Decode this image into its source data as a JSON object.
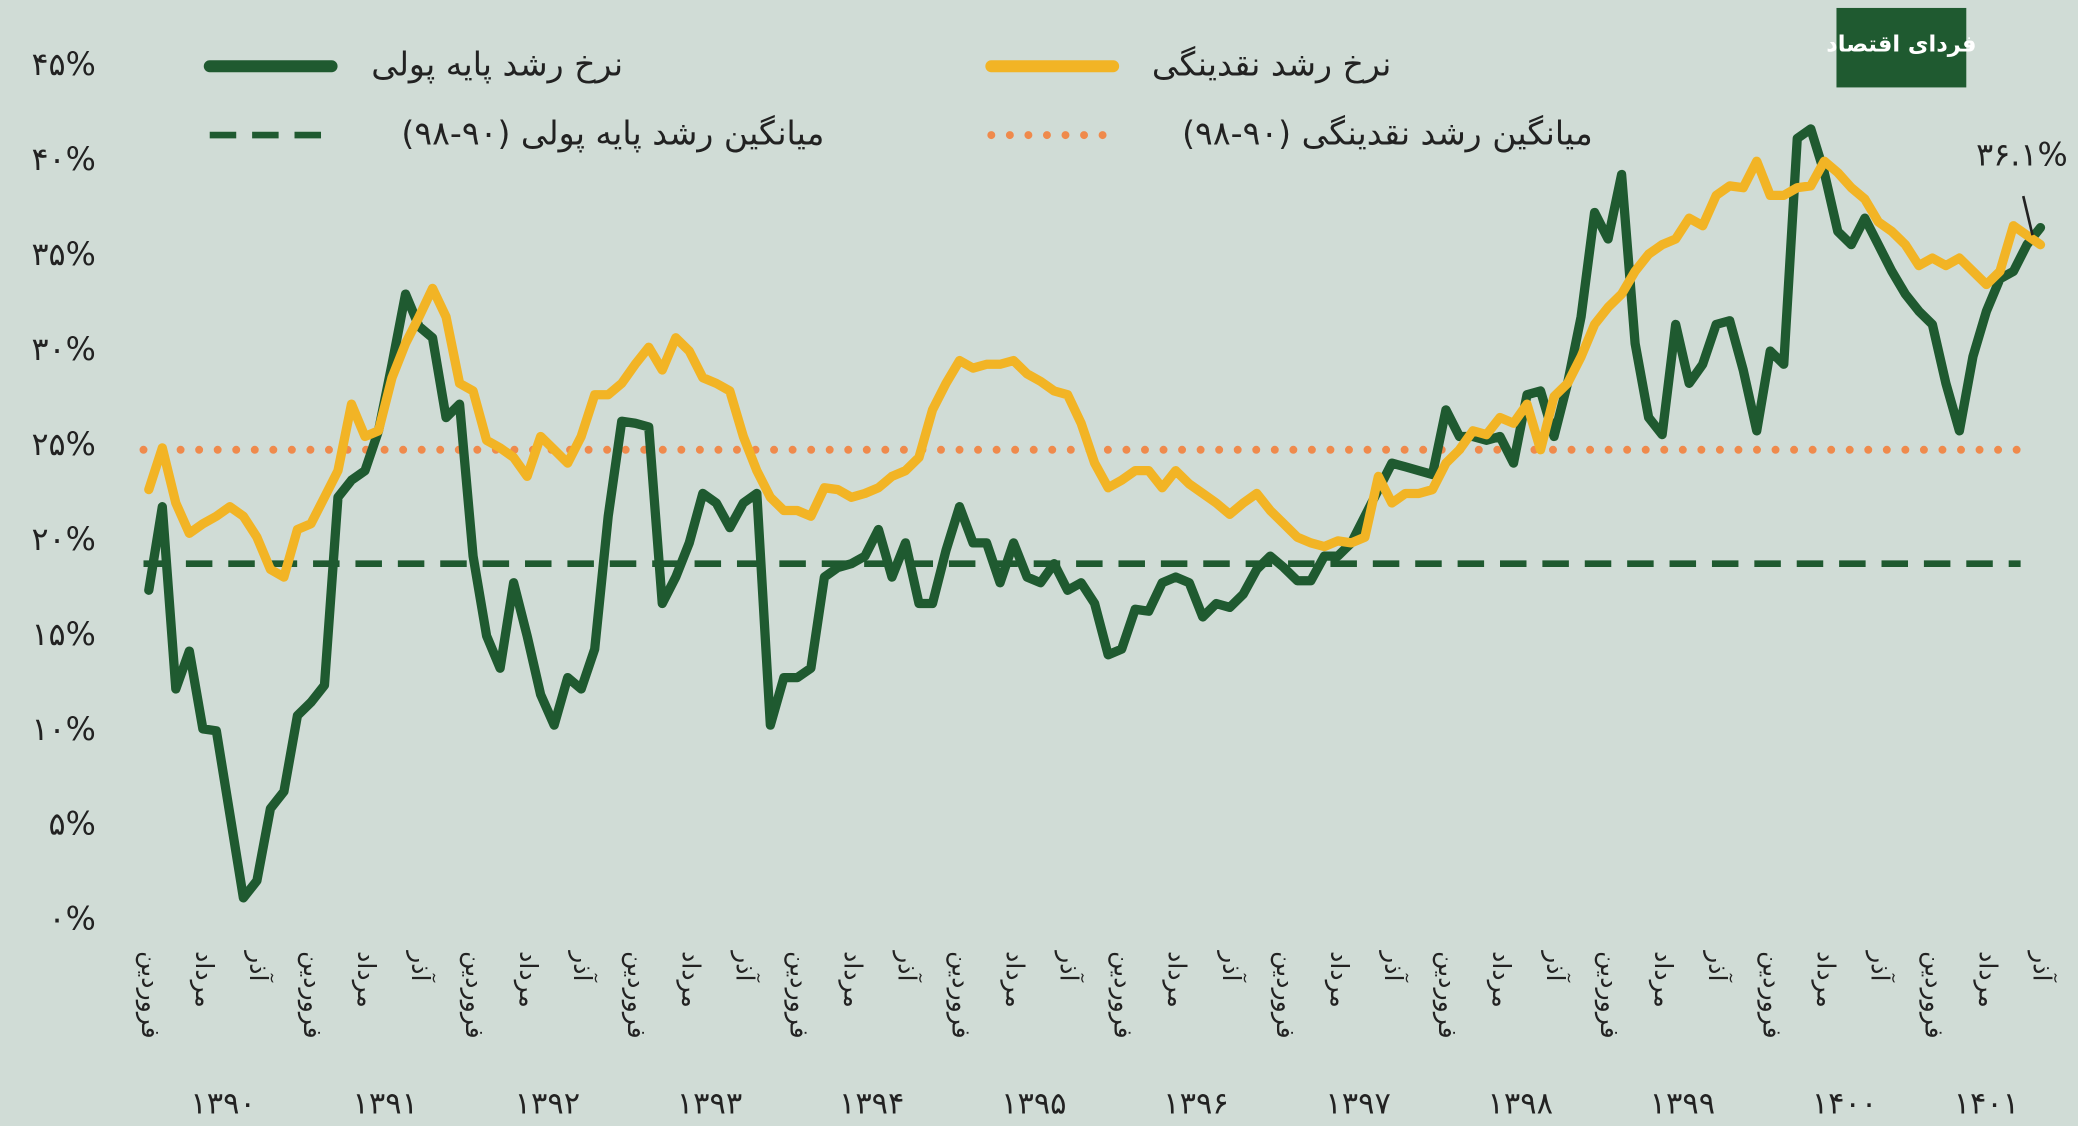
{
  "chart_data": {
    "type": "line",
    "logo": "فردای اقتصاد",
    "categories": [
      "فروردین",
      null,
      null,
      null,
      "مرداد",
      null,
      null,
      null,
      "آذر",
      null,
      null,
      null,
      "فروردین",
      null,
      null,
      null,
      "مرداد",
      null,
      null,
      null,
      "آذر",
      null,
      null,
      null,
      "فروردین",
      null,
      null,
      null,
      "مرداد",
      null,
      null,
      null,
      "آذر",
      null,
      null,
      null,
      "فروردین",
      null,
      null,
      null,
      "مرداد",
      null,
      null,
      null,
      "آذر",
      null,
      null,
      null,
      "فروردین",
      null,
      null,
      null,
      "مرداد",
      null,
      null,
      null,
      "آذر",
      null,
      null,
      null,
      "فروردین",
      null,
      null,
      null,
      "مرداد",
      null,
      null,
      null,
      "آذر",
      null,
      null,
      null,
      "فروردین",
      null,
      null,
      null,
      "مرداد",
      null,
      null,
      null,
      "آذر",
      null,
      null,
      null,
      "فروردین",
      null,
      null,
      null,
      "مرداد",
      null,
      null,
      null,
      "آذر",
      null,
      null,
      null,
      "فروردین",
      null,
      null,
      null,
      "مرداد",
      null,
      null,
      null,
      "آذر",
      null,
      null,
      null,
      "فروردین",
      null,
      null,
      null,
      "مرداد",
      null,
      null,
      null,
      "آذر",
      null,
      null,
      null,
      "فروردین",
      null,
      null,
      null,
      "مرداد",
      null,
      null,
      null,
      "آذر",
      null,
      null,
      null,
      "فروردین",
      null,
      null,
      null,
      "مرداد",
      null,
      null,
      null,
      "آذر"
    ],
    "year_labels": [
      "۱۳۹۰",
      "۱۳۹۱",
      "۱۳۹۲",
      "۱۳۹۳",
      "۱۳۹۴",
      "۱۳۹۵",
      "۱۳۹۶",
      "۱۳۹۷",
      "۱۳۹۸",
      "۱۳۹۹",
      "۱۴۰۰",
      "۱۴۰۱"
    ],
    "series": [
      {
        "name": "نرخ رشد پایه پولی",
        "color": "#1f5a30",
        "values": [
          17.4,
          21.8,
          12.2,
          14.2,
          10.1,
          10.0,
          5.6,
          1.2,
          2.1,
          5.9,
          6.8,
          10.8,
          11.5,
          12.4,
          22.3,
          23.2,
          23.7,
          25.8,
          29.3,
          33.0,
          31.3,
          30.7,
          26.5,
          27.2,
          19.2,
          15.0,
          13.3,
          17.8,
          15.0,
          11.9,
          10.3,
          12.8,
          12.2,
          14.3,
          21.3,
          26.3,
          26.2,
          26.0,
          16.7,
          18.1,
          19.9,
          22.5,
          22.0,
          20.7,
          22.0,
          22.5,
          10.3,
          12.8,
          12.8,
          13.3,
          18.1,
          18.6,
          18.8,
          19.2,
          20.6,
          18.1,
          19.9,
          16.7,
          16.7,
          19.5,
          21.8,
          19.9,
          19.9,
          17.8,
          19.9,
          18.1,
          17.8,
          18.8,
          17.4,
          17.8,
          16.7,
          14.0,
          14.3,
          16.4,
          16.3,
          17.8,
          18.1,
          17.8,
          16.0,
          16.7,
          16.5,
          17.2,
          18.5,
          19.2,
          18.6,
          17.9,
          17.9,
          19.2,
          19.2,
          19.9,
          21.3,
          22.7,
          24.1,
          23.9,
          23.7,
          23.5,
          26.9,
          25.5,
          25.5,
          25.3,
          25.5,
          24.1,
          27.7,
          27.9,
          25.5,
          28.3,
          31.8,
          37.3,
          35.9,
          39.3,
          30.4,
          26.5,
          25.6,
          31.4,
          28.3,
          29.3,
          31.4,
          31.6,
          29.0,
          25.8,
          30.0,
          29.3,
          41.2,
          41.7,
          39.4,
          36.3,
          35.6,
          37.0,
          35.6,
          34.2,
          33.0,
          32.1,
          31.4,
          28.3,
          25.8,
          29.7,
          32.1,
          33.8,
          34.2,
          35.6,
          36.5
        ]
      },
      {
        "name": "نرخ رشد نقدینگی",
        "color": "#f2b425",
        "values": [
          22.7,
          24.9,
          22.0,
          20.4,
          20.9,
          21.3,
          21.8,
          21.3,
          20.2,
          18.5,
          18.1,
          20.6,
          20.9,
          22.3,
          23.7,
          27.2,
          25.5,
          25.8,
          28.6,
          30.4,
          31.8,
          33.3,
          31.8,
          28.3,
          27.9,
          25.3,
          24.9,
          24.4,
          23.4,
          25.5,
          24.8,
          24.1,
          25.5,
          27.7,
          27.7,
          28.3,
          29.3,
          30.2,
          29.0,
          30.7,
          30.0,
          28.6,
          28.3,
          27.9,
          25.5,
          23.7,
          22.3,
          21.6,
          21.6,
          21.3,
          22.8,
          22.7,
          22.3,
          22.5,
          22.8,
          23.4,
          23.7,
          24.4,
          26.9,
          28.3,
          29.5,
          29.1,
          29.3,
          29.3,
          29.5,
          28.8,
          28.4,
          27.9,
          27.7,
          26.2,
          24.1,
          22.8,
          23.2,
          23.7,
          23.7,
          22.8,
          23.7,
          23.0,
          22.5,
          22.0,
          21.4,
          22.0,
          22.5,
          21.6,
          20.9,
          20.2,
          19.9,
          19.7,
          20.0,
          19.9,
          20.2,
          23.4,
          22.0,
          22.5,
          22.5,
          22.7,
          24.1,
          24.8,
          25.8,
          25.6,
          26.5,
          26.2,
          27.2,
          24.8,
          27.6,
          28.3,
          29.7,
          31.4,
          32.3,
          33.0,
          34.2,
          35.1,
          35.6,
          35.9,
          37.0,
          36.6,
          38.2,
          38.7,
          38.6,
          40.0,
          38.2,
          38.2,
          38.6,
          38.7,
          40.0,
          39.4,
          38.6,
          38.0,
          36.8,
          36.3,
          35.6,
          34.5,
          34.9,
          34.5,
          34.9,
          34.2,
          33.5,
          34.2,
          36.6,
          36.1,
          35.6
        ]
      }
    ],
    "reference_lines": [
      {
        "name": "میانگین رشد پایه پولی (۹۰-۹۸)",
        "value": 18.8,
        "color": "#1f5a30",
        "style": "dashed"
      },
      {
        "name": "میانگین رشد نقدینگی (۹۰-۹۸)",
        "value": 24.8,
        "color": "#ef8a4c",
        "style": "dotted"
      }
    ],
    "annotation": {
      "text": "۳۶.۱%",
      "value": 36.1
    },
    "ylim": [
      0,
      45
    ],
    "yticks": [
      {
        "value": 0,
        "label": "۰%"
      },
      {
        "value": 5,
        "label": "۵%"
      },
      {
        "value": 10,
        "label": "۱۰%"
      },
      {
        "value": 15,
        "label": "۱۵%"
      },
      {
        "value": 20,
        "label": "۲۰%"
      },
      {
        "value": 25,
        "label": "۲۵%"
      },
      {
        "value": 30,
        "label": "۳۰%"
      },
      {
        "value": 35,
        "label": "۳۵%"
      },
      {
        "value": 40,
        "label": "۴۰%"
      },
      {
        "value": 45,
        "label": "۴۵%"
      }
    ],
    "grid": false
  }
}
